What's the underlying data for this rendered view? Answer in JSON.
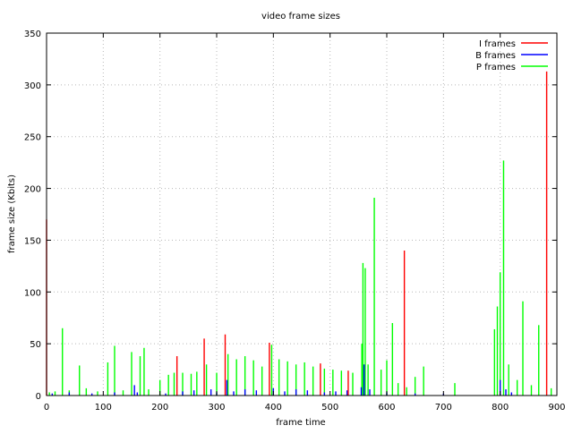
{
  "chart_data": {
    "type": "bar",
    "title": "video frame sizes",
    "xlabel": "frame time",
    "ylabel": "frame size (Kbits)",
    "xlim": [
      0,
      900
    ],
    "ylim": [
      0,
      350
    ],
    "xticks": [
      0,
      100,
      200,
      300,
      400,
      500,
      600,
      700,
      800,
      900
    ],
    "yticks": [
      0,
      50,
      100,
      150,
      200,
      250,
      300,
      350
    ],
    "grid": true,
    "legend_position": "top-right",
    "series": [
      {
        "name": "I frames",
        "color": "#ff0000",
        "x": [
          0,
          230,
          278,
          315,
          393,
          483,
          532,
          631,
          882
        ],
        "values": [
          170,
          38,
          55,
          59,
          51,
          31,
          24,
          140,
          313
        ]
      },
      {
        "name": "B frames",
        "color": "#0000ff",
        "x": [
          10,
          40,
          80,
          120,
          155,
          160,
          210,
          240,
          260,
          290,
          300,
          318,
          330,
          350,
          370,
          400,
          420,
          440,
          460,
          490,
          510,
          530,
          555,
          560,
          570,
          600,
          650,
          700,
          800,
          810,
          820
        ],
        "values": [
          2,
          3,
          2,
          3,
          10,
          3,
          2,
          4,
          5,
          6,
          3,
          15,
          4,
          6,
          5,
          7,
          4,
          6,
          5,
          3,
          4,
          5,
          8,
          30,
          6,
          3,
          2,
          2,
          15,
          6,
          3
        ]
      },
      {
        "name": "P frames",
        "color": "#00ff00",
        "x": [
          5,
          15,
          28,
          40,
          58,
          70,
          90,
          108,
          120,
          135,
          150,
          165,
          172,
          180,
          200,
          215,
          225,
          240,
          255,
          265,
          282,
          300,
          320,
          335,
          350,
          365,
          380,
          397,
          410,
          425,
          440,
          455,
          470,
          490,
          505,
          520,
          540,
          556,
          558,
          562,
          567,
          578,
          590,
          600,
          610,
          620,
          635,
          650,
          665,
          720,
          790,
          795,
          800,
          806,
          815,
          830,
          840,
          855,
          868,
          890
        ],
        "values": [
          3,
          4,
          65,
          5,
          29,
          7,
          4,
          32,
          48,
          5,
          42,
          38,
          46,
          6,
          15,
          20,
          22,
          22,
          21,
          23,
          30,
          22,
          40,
          35,
          38,
          34,
          28,
          49,
          35,
          33,
          30,
          32,
          28,
          26,
          25,
          24,
          22,
          50,
          128,
          123,
          30,
          191,
          25,
          34,
          70,
          12,
          8,
          18,
          28,
          12,
          64,
          86,
          119,
          227,
          30,
          15,
          91,
          10,
          68,
          7
        ]
      }
    ]
  }
}
